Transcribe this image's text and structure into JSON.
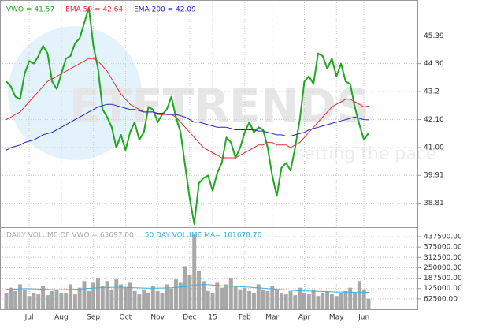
{
  "chart_data": [
    {
      "type": "line",
      "watermark_title": "ETFTRENDS",
      "watermark_tagline": "setting the pace",
      "categories": [
        null,
        null,
        null,
        null,
        null,
        "Jul",
        null,
        null,
        null,
        null,
        null,
        null,
        "Aug",
        null,
        null,
        null,
        null,
        null,
        null,
        "Sep",
        null,
        null,
        null,
        null,
        null,
        null,
        "Oct",
        null,
        null,
        null,
        null,
        null,
        null,
        "Nov",
        null,
        null,
        null,
        null,
        null,
        null,
        "Dec",
        null,
        null,
        null,
        null,
        "15",
        null,
        null,
        null,
        null,
        null,
        null,
        "Feb",
        null,
        null,
        null,
        null,
        null,
        "Mar",
        null,
        null,
        null,
        null,
        null,
        null,
        "Apr",
        null,
        null,
        null,
        null,
        null,
        null,
        "May",
        null,
        null,
        null,
        null,
        null,
        "Jun",
        null
      ],
      "ylim": [
        37.87,
        46.8
      ],
      "yticks": [
        45.39,
        {
          "value": 44.3,
          "label": "44.30"
        },
        43.2,
        {
          "value": 42.1,
          "label": "42.10"
        },
        {
          "value": 41.0,
          "label": "41.00"
        },
        39.91,
        38.81
      ],
      "grid": true,
      "series": [
        {
          "name": "VWO = 41.57",
          "color": "#1fa81f",
          "width": 2,
          "values": [
            43.6,
            43.4,
            43.0,
            42.9,
            43.9,
            44.4,
            44.3,
            44.6,
            45.0,
            44.7,
            43.6,
            43.3,
            43.9,
            44.5,
            44.6,
            45.1,
            45.3,
            45.9,
            46.5,
            45.0,
            44.1,
            42.5,
            42.2,
            41.8,
            41.0,
            41.5,
            40.9,
            41.6,
            42.0,
            41.3,
            41.6,
            42.6,
            42.5,
            42.0,
            42.3,
            42.5,
            43.0,
            42.2,
            41.6,
            40.3,
            39.0,
            38.0,
            39.6,
            39.8,
            39.9,
            39.3,
            40.0,
            40.4,
            41.4,
            41.2,
            40.6,
            41.0,
            41.6,
            42.0,
            41.6,
            41.8,
            41.7,
            41.0,
            39.9,
            39.1,
            40.2,
            40.4,
            40.1,
            41.0,
            42.1,
            43.6,
            43.8,
            43.5,
            44.7,
            44.6,
            44.1,
            44.5,
            43.8,
            44.3,
            43.6,
            43.5,
            42.6,
            41.9,
            41.3,
            41.57
          ]
        },
        {
          "name": "EMA 50 = 42.64",
          "color": "#e03030",
          "width": 1,
          "values": [
            42.1,
            42.2,
            42.3,
            42.4,
            42.6,
            42.8,
            43.0,
            43.2,
            43.4,
            43.6,
            43.7,
            43.8,
            43.9,
            44.0,
            44.1,
            44.2,
            44.3,
            44.4,
            44.5,
            44.5,
            44.4,
            44.2,
            44.0,
            43.7,
            43.4,
            43.1,
            42.9,
            42.7,
            42.6,
            42.5,
            42.4,
            42.4,
            42.4,
            42.3,
            42.3,
            42.3,
            42.3,
            42.2,
            42.0,
            41.8,
            41.6,
            41.4,
            41.2,
            41.0,
            40.9,
            40.8,
            40.7,
            40.6,
            40.6,
            40.6,
            40.6,
            40.7,
            40.8,
            40.9,
            41.0,
            41.1,
            41.1,
            41.2,
            41.2,
            41.1,
            41.1,
            41.1,
            41.0,
            41.1,
            41.2,
            41.4,
            41.6,
            41.8,
            42.0,
            42.2,
            42.4,
            42.6,
            42.7,
            42.8,
            42.9,
            42.9,
            42.8,
            42.7,
            42.6,
            42.64
          ]
        },
        {
          "name": "EMA 200 = 42.09",
          "color": "#2222cc",
          "width": 1,
          "values": [
            40.9,
            41.0,
            41.05,
            41.1,
            41.2,
            41.25,
            41.3,
            41.4,
            41.5,
            41.55,
            41.6,
            41.7,
            41.8,
            41.9,
            42.0,
            42.1,
            42.2,
            42.3,
            42.4,
            42.5,
            42.6,
            42.65,
            42.7,
            42.7,
            42.65,
            42.6,
            42.55,
            42.5,
            42.5,
            42.45,
            42.4,
            42.4,
            42.4,
            42.35,
            42.35,
            42.3,
            42.3,
            42.3,
            42.25,
            42.2,
            42.1,
            42.0,
            42.0,
            41.95,
            41.9,
            41.85,
            41.8,
            41.8,
            41.8,
            41.75,
            41.7,
            41.7,
            41.7,
            41.7,
            41.7,
            41.65,
            41.65,
            41.6,
            41.55,
            41.5,
            41.5,
            41.45,
            41.45,
            41.5,
            41.55,
            41.6,
            41.7,
            41.75,
            41.8,
            41.85,
            41.9,
            41.95,
            42.0,
            42.05,
            42.1,
            42.15,
            42.2,
            42.15,
            42.1,
            42.09
          ]
        }
      ]
    },
    {
      "type": "bar",
      "ylim": [
        0,
        490000
      ],
      "yticks": [
        {
          "value": 437500,
          "label": "437500.00"
        },
        {
          "value": 375000,
          "label": "375000.00"
        },
        {
          "value": 312500,
          "label": "312500.00"
        },
        {
          "value": 250000,
          "label": "250000.00"
        },
        {
          "value": 187500,
          "label": "187500.00"
        },
        {
          "value": 125000,
          "label": "125000.00"
        },
        {
          "value": 62500,
          "label": "62500.00"
        }
      ],
      "grid": true,
      "series": [
        {
          "name": "DAILY VOLUME OF VWO = 63697.00",
          "color": "#a8a8a8",
          "mark": "bar",
          "values": [
            95000,
            130000,
            110000,
            150000,
            120000,
            80000,
            100000,
            90000,
            140000,
            85000,
            110000,
            120000,
            100000,
            95000,
            150000,
            90000,
            130000,
            170000,
            110000,
            160000,
            190000,
            140000,
            170000,
            120000,
            180000,
            150000,
            130000,
            160000,
            110000,
            90000,
            120000,
            100000,
            140000,
            110000,
            95000,
            150000,
            125000,
            180000,
            160000,
            260000,
            210000,
            450000,
            230000,
            170000,
            110000,
            100000,
            160000,
            130000,
            150000,
            190000,
            140000,
            120000,
            130000,
            110000,
            100000,
            150000,
            120000,
            110000,
            140000,
            120000,
            100000,
            90000,
            110000,
            85000,
            130000,
            100000,
            90000,
            120000,
            80000,
            100000,
            110000,
            90000,
            80000,
            95000,
            110000,
            130000,
            100000,
            170000,
            120000,
            63697
          ]
        },
        {
          "name": "50 DAY VOLUME MA= 101678.76",
          "color": "#3aaee0",
          "mark": "line",
          "values": [
            120000,
            121000,
            122000,
            123000,
            124000,
            124000,
            123000,
            122000,
            121000,
            120000,
            119000,
            118000,
            118000,
            119000,
            120000,
            121000,
            122000,
            124000,
            126000,
            128000,
            130000,
            131000,
            132000,
            132000,
            133000,
            133000,
            132000,
            131000,
            130000,
            129000,
            128000,
            127000,
            127000,
            128000,
            128000,
            129000,
            130000,
            132000,
            134000,
            137000,
            140000,
            146000,
            148000,
            149000,
            148000,
            146000,
            144000,
            142000,
            140000,
            139000,
            138000,
            137000,
            135000,
            133000,
            131000,
            129000,
            127000,
            125000,
            123000,
            121000,
            119000,
            117000,
            115000,
            113000,
            112000,
            111000,
            110000,
            109000,
            108000,
            107000,
            106000,
            105000,
            104000,
            104000,
            103000,
            103000,
            102000,
            102000,
            102000,
            101678.76
          ]
        }
      ]
    }
  ]
}
